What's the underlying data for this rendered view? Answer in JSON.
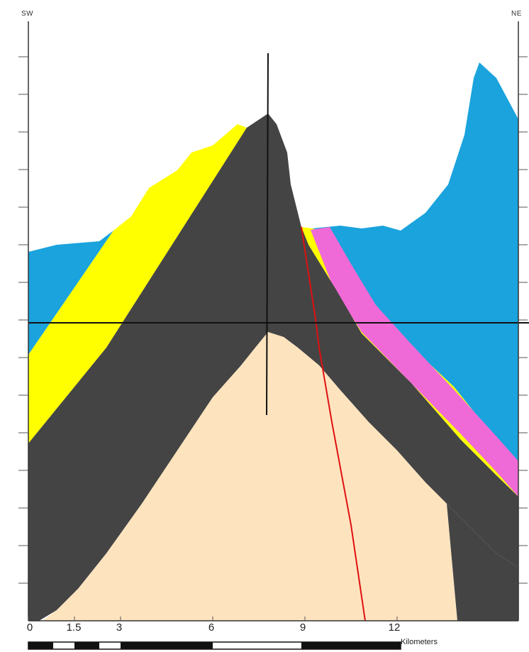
{
  "section": {
    "left_label": "SW",
    "right_label": "NE",
    "units_label": "Kilometers",
    "distance_ticks": [
      "0",
      "1.5",
      "3",
      "6",
      "9",
      "12"
    ]
  },
  "layers": [
    {
      "name": "cover",
      "color": "#1aa3dd"
    },
    {
      "name": "upper-unit",
      "color": "#ffff00"
    },
    {
      "name": "thin-unit",
      "color": "#f06ad7"
    },
    {
      "name": "dark-unit",
      "color": "#444444"
    },
    {
      "name": "basement",
      "color": "#fde4be"
    }
  ],
  "fault_color": "#e01010"
}
